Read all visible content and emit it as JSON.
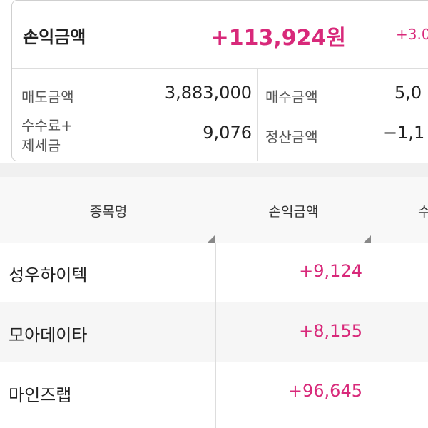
{
  "summary": {
    "label": "손익금액",
    "value": "+113,924원",
    "rate": "+3.0",
    "cells": [
      {
        "label": [
          "매도금액"
        ],
        "value": "3,883,000"
      },
      {
        "label": [
          "매수금액"
        ],
        "value": "5,0"
      },
      {
        "label": [
          "수수료+",
          "제세금"
        ],
        "value": "9,076"
      },
      {
        "label": [
          "정산금액"
        ],
        "value": "−1,1"
      }
    ]
  },
  "table": {
    "headers": [
      "종목명",
      "손익금액",
      "수"
    ],
    "rows": [
      [
        "성우하이텍",
        "+9,124"
      ],
      [
        "모아데이타",
        "+8,155"
      ],
      [
        "마인즈랩",
        "+96,645"
      ]
    ]
  }
}
